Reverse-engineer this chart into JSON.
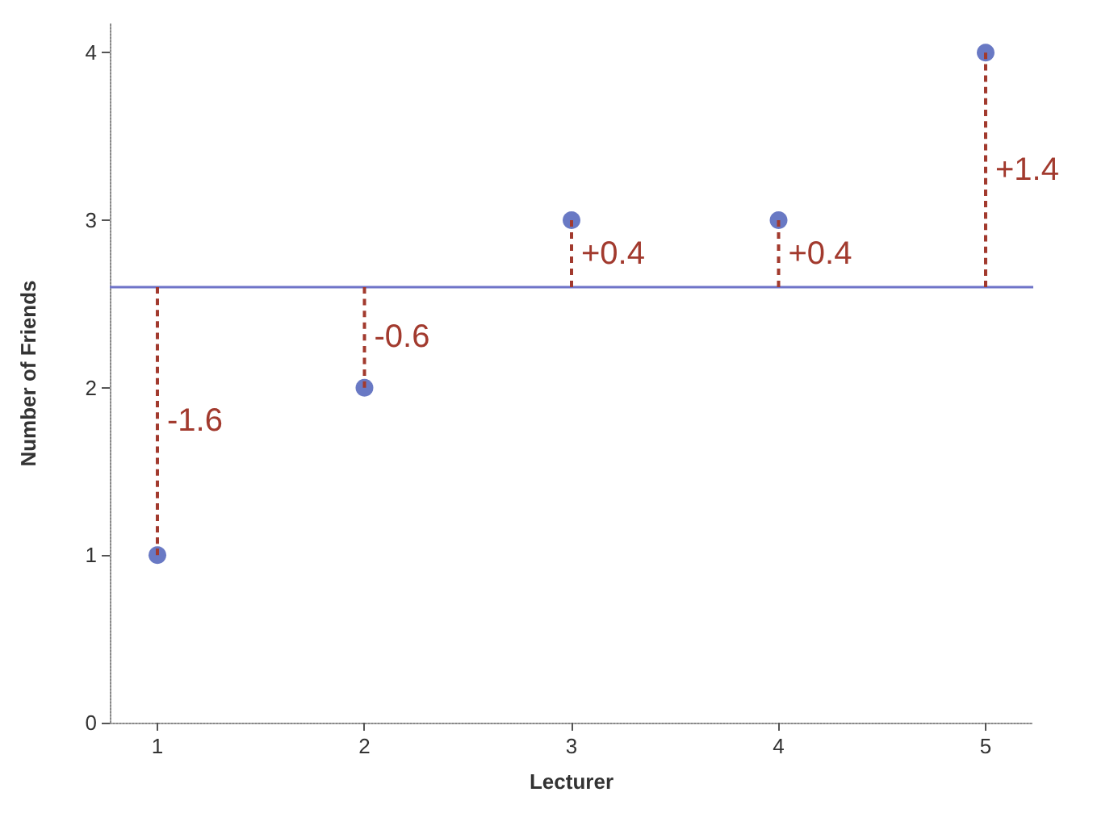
{
  "chart_data": {
    "type": "scatter",
    "xlabel": "Lecturer",
    "ylabel": "Number of Friends",
    "x": [
      1,
      2,
      3,
      4,
      5
    ],
    "values": [
      1,
      2,
      3,
      3,
      4
    ],
    "color": "#4358b5",
    "errors": [
      [
        1,
        2.6
      ],
      [
        2,
        2.6
      ],
      [
        2.6,
        3
      ],
      [
        2.6,
        3
      ],
      [
        2.6,
        4
      ]
    ],
    "marker": "circle",
    "xlim": [
      0.77,
      5.23
    ],
    "xticks": [
      1,
      2,
      3,
      4,
      5
    ],
    "ylim": [
      0,
      4.17
    ],
    "yticks": [
      0,
      1,
      2,
      3,
      4
    ],
    "grid": false,
    "ref_lines": [
      {
        "axis": "y",
        "value": 2.6,
        "color": "#6f74c8",
        "line_style": "solid"
      }
    ],
    "annotations": [
      "-1.6",
      "-0.6",
      "+0.4",
      "+0.4",
      "+1.4"
    ]
  }
}
